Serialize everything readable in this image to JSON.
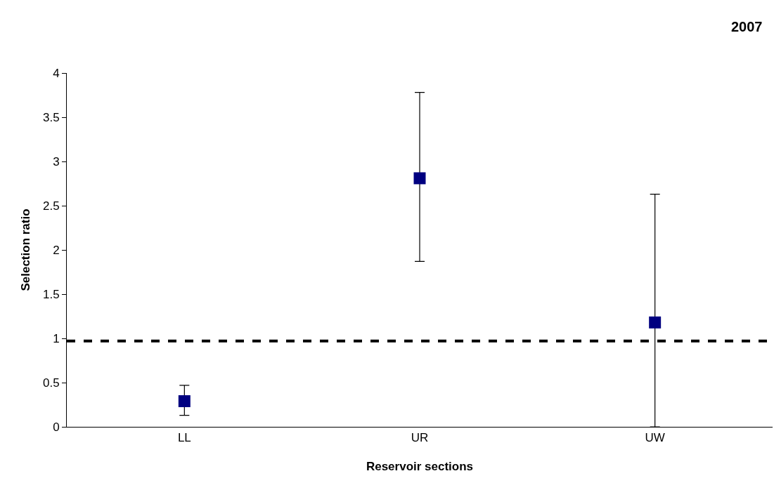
{
  "chart_data": {
    "type": "scatter",
    "title": "2007",
    "xlabel": "Reservoir sections",
    "ylabel": "Selection ratio",
    "categories": [
      "LL",
      "UR",
      "UW"
    ],
    "values": [
      0.29,
      2.81,
      1.18
    ],
    "errors": [
      [
        0.13,
        0.47
      ],
      [
        1.87,
        3.78
      ],
      [
        0,
        2.63
      ]
    ],
    "color": "#000080",
    "marker": "square",
    "ylim": [
      0,
      4
    ],
    "yticks": [
      0,
      0.5,
      1,
      1.5,
      2,
      2.5,
      3,
      3.5,
      4
    ],
    "ref_lines": [
      {
        "axis": "y",
        "value": 0.97,
        "color": "#000000",
        "line_style": "dashed"
      }
    ],
    "grid": false,
    "legend": false
  }
}
